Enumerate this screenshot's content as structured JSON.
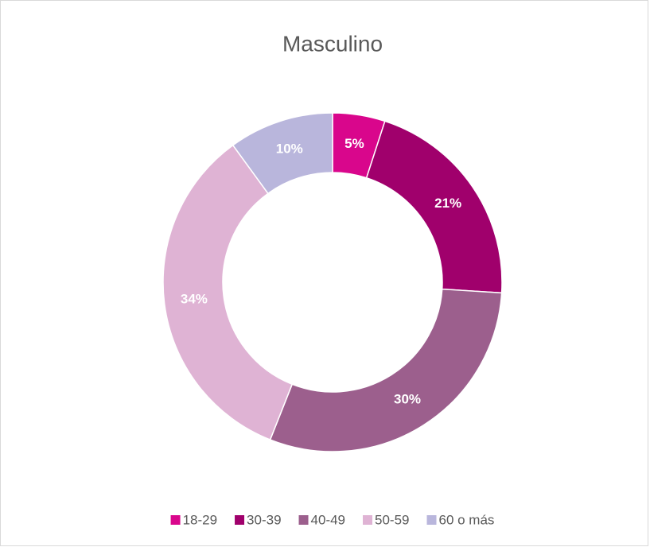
{
  "chart_data": {
    "type": "donut",
    "title": "Masculino",
    "categories": [
      "18-29",
      "30-39",
      "40-49",
      "50-59",
      "60 o más"
    ],
    "values": [
      5,
      21,
      30,
      34,
      10
    ],
    "value_labels": [
      "5%",
      "21%",
      "30%",
      "34%",
      "10%"
    ],
    "colors": [
      "#d9068c",
      "#a0006c",
      "#9c5f8d",
      "#dfb3d4",
      "#b9b6dc"
    ],
    "legend": "bottom"
  }
}
